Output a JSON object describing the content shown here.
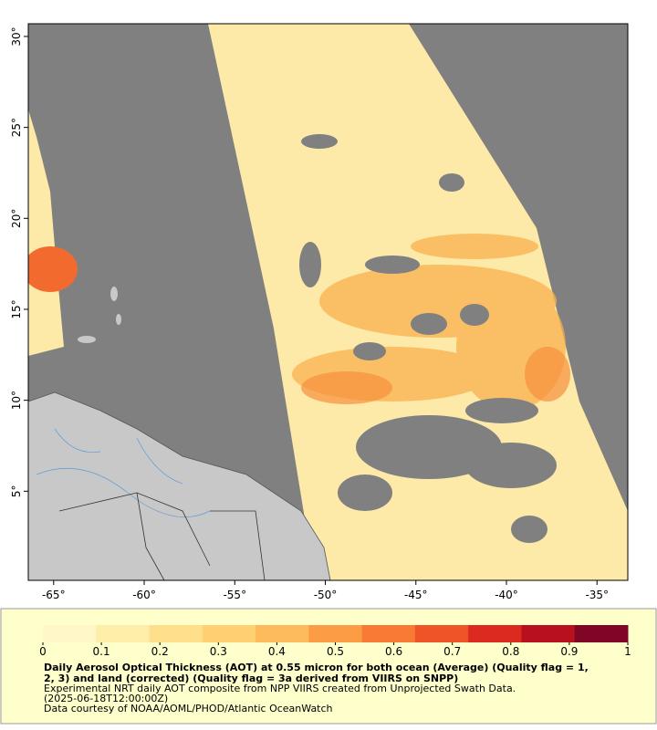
{
  "map": {
    "lon_range": [
      -66.4,
      -33.3
    ],
    "lat_range": [
      0.1,
      30.7
    ],
    "xticks": [
      {
        "value": -65,
        "label": "-65°"
      },
      {
        "value": -60,
        "label": "-60°"
      },
      {
        "value": -55,
        "label": "-55°"
      },
      {
        "value": -50,
        "label": "-50°"
      },
      {
        "value": -45,
        "label": "-45°"
      },
      {
        "value": -40,
        "label": "-40°"
      },
      {
        "value": -35,
        "label": "-35°"
      }
    ],
    "yticks": [
      {
        "value": 5,
        "label": "5°"
      },
      {
        "value": 10,
        "label": "10°"
      },
      {
        "value": 15,
        "label": "15°"
      },
      {
        "value": 20,
        "label": "20°"
      },
      {
        "value": 25,
        "label": "25°"
      },
      {
        "value": 30,
        "label": "30°"
      }
    ]
  },
  "colorbar": {
    "range": [
      0,
      1
    ],
    "ticks": [
      0,
      0.1,
      0.2,
      0.3,
      0.4,
      0.5,
      0.6,
      0.7,
      0.8,
      0.9,
      1
    ],
    "colors": [
      "#fff7c8",
      "#feeeaa",
      "#fee08c",
      "#fed072",
      "#fdbb5c",
      "#fc9c45",
      "#f97a35",
      "#ef5328",
      "#dc2a20",
      "#b8101f",
      "#800626"
    ]
  },
  "legend": {
    "title_lines": [
      "Daily Aerosol Optical Thickness (AOT) at 0.55 micron for both ocean (Average) (Quality flag = 1,",
      "2, 3) and land (corrected) (Quality flag = 3a derived from VIIRS on SNPP)"
    ],
    "lines": [
      "Experimental NRT daily AOT composite from NPP VIIRS created from Unprojected Swath Data.",
      "(2025-06-18T12:00:00Z)",
      "Data courtesy of NOAA/AOML/PHOD/Atlantic OceanWatch"
    ]
  }
}
